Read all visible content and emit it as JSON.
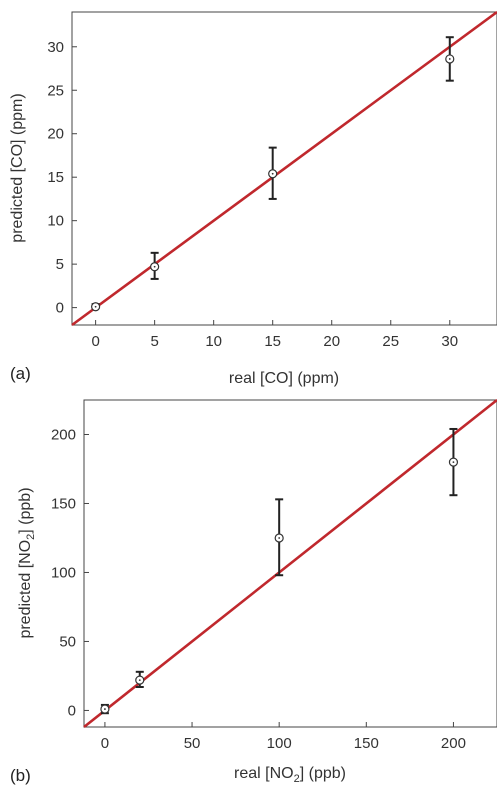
{
  "chart_data": [
    {
      "type": "scatter",
      "panel_label": "(a)",
      "xlabel": "real [CO] (ppm)",
      "ylabel": "predicted [CO] (ppm)",
      "xlim": [
        -2,
        34
      ],
      "ylim": [
        -2,
        34
      ],
      "xticks": [
        0,
        5,
        10,
        15,
        20,
        25,
        30
      ],
      "yticks": [
        0,
        5,
        10,
        15,
        20,
        25,
        30
      ],
      "points": [
        {
          "x": 0,
          "y": 0.1,
          "err_low": 0.0,
          "err_high": 0.4
        },
        {
          "x": 5,
          "y": 4.7,
          "err_low": 3.3,
          "err_high": 6.3
        },
        {
          "x": 15,
          "y": 15.4,
          "err_low": 12.5,
          "err_high": 18.4
        },
        {
          "x": 30,
          "y": 28.6,
          "err_low": 26.1,
          "err_high": 31.1
        }
      ],
      "fit_line": {
        "slope": 1,
        "intercept": 0,
        "color": "#c0282d"
      },
      "grid": false
    },
    {
      "type": "scatter",
      "panel_label": "(b)",
      "xlabel_parts": [
        "real [NO",
        "2",
        "] (ppb)"
      ],
      "ylabel_parts": [
        "predicted [NO",
        "2",
        "] (ppb)"
      ],
      "xlim": [
        -12,
        225
      ],
      "ylim": [
        -12,
        225
      ],
      "xticks": [
        0,
        50,
        100,
        150,
        200
      ],
      "yticks": [
        0,
        50,
        100,
        150,
        200
      ],
      "points": [
        {
          "x": 0,
          "y": 1,
          "err_low": -2,
          "err_high": 4
        },
        {
          "x": 20,
          "y": 22,
          "err_low": 17,
          "err_high": 28
        },
        {
          "x": 100,
          "y": 125,
          "err_low": 98,
          "err_high": 153
        },
        {
          "x": 200,
          "y": 180,
          "err_low": 156,
          "err_high": 204
        }
      ],
      "fit_line": {
        "slope": 1,
        "intercept": 0,
        "color": "#c0282d"
      },
      "grid": false
    }
  ]
}
